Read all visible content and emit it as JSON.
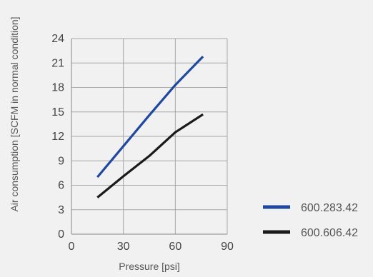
{
  "chart_data": {
    "type": "line",
    "title": "",
    "xlabel": "Pressure [psi]",
    "ylabel": "Air consumption [SCFM in normal condition]",
    "xlim": [
      0,
      90
    ],
    "ylim": [
      0,
      24
    ],
    "xticks": [
      0,
      30,
      60,
      90
    ],
    "yticks": [
      0,
      3,
      6,
      9,
      12,
      15,
      18,
      21,
      24
    ],
    "grid": true,
    "legend_position": "bottom-right",
    "series": [
      {
        "name": "600.283.42",
        "color": "#1f48a0",
        "x": [
          15,
          30,
          45,
          60,
          76
        ],
        "y": [
          7.0,
          10.8,
          14.6,
          18.3,
          21.8
        ]
      },
      {
        "name": "600.606.42",
        "color": "#1a1a1a",
        "x": [
          15,
          30,
          45,
          60,
          76
        ],
        "y": [
          4.5,
          7.1,
          9.6,
          12.5,
          14.7
        ]
      }
    ]
  }
}
